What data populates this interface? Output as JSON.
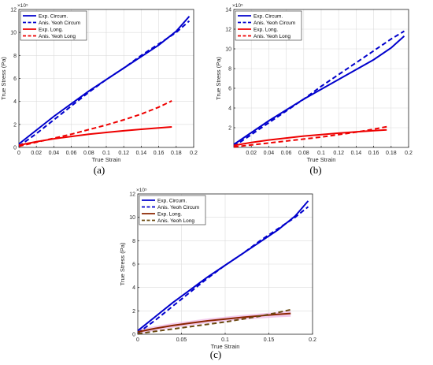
{
  "panel_labels": [
    "(a)",
    "(b)",
    "(c)"
  ],
  "chart_data": [
    {
      "type": "line",
      "panel": "(a)",
      "xlabel": "True Strain",
      "ylabel": "True Stress (Pa)",
      "y_multiplier_label": "×10⁵",
      "xlim": [
        0,
        0.2
      ],
      "ylim": [
        0,
        12
      ],
      "x_ticks": [
        "0",
        "0.02",
        "0.04",
        "0.06",
        "0.08",
        "0.1",
        "0.12",
        "0.14",
        "0.16",
        "0.18",
        "0.2"
      ],
      "y_ticks": [
        "0",
        "2",
        "4",
        "6",
        "8",
        "10",
        "12"
      ],
      "grid": true,
      "legend_position": "top-left",
      "series": [
        {
          "name": "Exp. Circum.",
          "color": "#0000cc",
          "style": "solid",
          "x": [
            0,
            0.02,
            0.04,
            0.06,
            0.08,
            0.1,
            0.12,
            0.14,
            0.16,
            0.18,
            0.195
          ],
          "y": [
            0.3,
            1.5,
            2.7,
            3.8,
            4.9,
            5.9,
            6.9,
            7.9,
            8.9,
            10.1,
            11.4
          ]
        },
        {
          "name": "Anis. Yeoh Circum",
          "color": "#0000cc",
          "style": "dashed",
          "x": [
            0,
            0.02,
            0.04,
            0.06,
            0.08,
            0.1,
            0.12,
            0.14,
            0.16,
            0.18,
            0.195
          ],
          "y": [
            0.1,
            1.2,
            2.4,
            3.6,
            4.8,
            5.9,
            6.9,
            8.0,
            9.0,
            10.0,
            11.0
          ]
        },
        {
          "name": "Exp. Long.",
          "color": "#ee0000",
          "style": "solid",
          "x": [
            0,
            0.02,
            0.04,
            0.06,
            0.08,
            0.1,
            0.12,
            0.14,
            0.16,
            0.175
          ],
          "y": [
            0.2,
            0.5,
            0.75,
            0.95,
            1.15,
            1.3,
            1.45,
            1.58,
            1.7,
            1.78
          ]
        },
        {
          "name": "Anis. Yeoh Long",
          "color": "#ee0000",
          "style": "dashed",
          "x": [
            0,
            0.02,
            0.04,
            0.06,
            0.08,
            0.1,
            0.12,
            0.14,
            0.16,
            0.175
          ],
          "y": [
            0.1,
            0.45,
            0.8,
            1.15,
            1.55,
            1.95,
            2.4,
            2.9,
            3.5,
            4.05
          ]
        }
      ]
    },
    {
      "type": "line",
      "panel": "(b)",
      "xlabel": "True Strain",
      "ylabel": "True Stress (Pa)",
      "y_multiplier_label": "×10⁵",
      "xlim": [
        0,
        0.2
      ],
      "ylim": [
        0,
        14
      ],
      "x_ticks": [
        "0.02",
        "0.04",
        "0.06",
        "0.08",
        "0.1",
        "0.12",
        "0.14",
        "0.16",
        "0.18",
        "0.2"
      ],
      "y_ticks": [
        "2",
        "4",
        "6",
        "8",
        "10",
        "12",
        "14"
      ],
      "grid": true,
      "legend_position": "top-left",
      "series": [
        {
          "name": "Exp. Circum.",
          "color": "#0000cc",
          "style": "solid",
          "x": [
            0,
            0.02,
            0.04,
            0.06,
            0.08,
            0.1,
            0.12,
            0.14,
            0.16,
            0.18,
            0.195
          ],
          "y": [
            0.3,
            1.5,
            2.7,
            3.8,
            4.9,
            5.9,
            6.9,
            7.9,
            8.9,
            10.1,
            11.3
          ]
        },
        {
          "name": "Anis. Yeoh Circum",
          "color": "#0000cc",
          "style": "dashed",
          "x": [
            0,
            0.02,
            0.04,
            0.06,
            0.08,
            0.1,
            0.12,
            0.14,
            0.16,
            0.18,
            0.195
          ],
          "y": [
            0.1,
            1.3,
            2.5,
            3.7,
            4.9,
            6.2,
            7.4,
            8.6,
            9.8,
            11.0,
            11.8
          ]
        },
        {
          "name": "Exp. Long.",
          "color": "#ee0000",
          "style": "solid",
          "x": [
            0,
            0.02,
            0.04,
            0.06,
            0.08,
            0.1,
            0.12,
            0.14,
            0.16,
            0.175
          ],
          "y": [
            0.2,
            0.5,
            0.75,
            0.95,
            1.15,
            1.3,
            1.45,
            1.58,
            1.7,
            1.78
          ]
        },
        {
          "name": "Anis. Yeoh Long",
          "color": "#ee0000",
          "style": "dashed",
          "x": [
            0,
            0.02,
            0.04,
            0.06,
            0.08,
            0.1,
            0.12,
            0.14,
            0.16,
            0.175
          ],
          "y": [
            0.05,
            0.25,
            0.45,
            0.65,
            0.85,
            1.05,
            1.3,
            1.55,
            1.85,
            2.1
          ]
        }
      ]
    },
    {
      "type": "line",
      "panel": "(c)",
      "xlabel": "True Strain",
      "ylabel": "True Stress (Pa)",
      "y_multiplier_label": "×10⁵",
      "xlim": [
        0,
        0.2
      ],
      "ylim": [
        0,
        12
      ],
      "x_ticks": [
        "0",
        "0.05",
        "0.1",
        "0.15",
        "0.2"
      ],
      "y_ticks": [
        "0",
        "2",
        "4",
        "6",
        "8",
        "10",
        "12"
      ],
      "grid": true,
      "legend_position": "top-left",
      "series": [
        {
          "name": "Exp. Circum.",
          "color": "#0000cc",
          "style": "solid",
          "x": [
            0,
            0.02,
            0.04,
            0.06,
            0.08,
            0.1,
            0.12,
            0.14,
            0.16,
            0.18,
            0.195
          ],
          "y": [
            0.3,
            1.5,
            2.7,
            3.8,
            4.9,
            5.9,
            6.9,
            7.9,
            8.9,
            10.1,
            11.4
          ]
        },
        {
          "name": "Anis. Yeoh Circum",
          "color": "#0000cc",
          "style": "dashed",
          "x": [
            0,
            0.02,
            0.04,
            0.06,
            0.08,
            0.1,
            0.12,
            0.14,
            0.16,
            0.18,
            0.195
          ],
          "y": [
            0.1,
            1.2,
            2.4,
            3.6,
            4.8,
            5.9,
            6.9,
            8.0,
            9.0,
            10.0,
            10.9
          ]
        },
        {
          "name": "Exp. Long.",
          "color": "#8b2500",
          "style": "solid",
          "x": [
            0,
            0.02,
            0.04,
            0.06,
            0.08,
            0.1,
            0.12,
            0.14,
            0.16,
            0.175
          ],
          "y": [
            0.2,
            0.5,
            0.75,
            0.95,
            1.15,
            1.3,
            1.45,
            1.58,
            1.7,
            1.78
          ]
        },
        {
          "name": "Anis. Yeoh Long",
          "color": "#6b4a10",
          "style": "dashed",
          "x": [
            0,
            0.02,
            0.04,
            0.06,
            0.08,
            0.1,
            0.12,
            0.14,
            0.16,
            0.175
          ],
          "y": [
            0.05,
            0.25,
            0.45,
            0.65,
            0.85,
            1.05,
            1.3,
            1.55,
            1.85,
            2.1
          ]
        }
      ],
      "band": {
        "color": "#e9a0dc",
        "x": [
          0,
          0.02,
          0.04,
          0.06,
          0.08,
          0.1,
          0.12,
          0.14,
          0.16,
          0.175
        ],
        "y_low": [
          0.0,
          0.3,
          0.55,
          0.75,
          0.95,
          1.1,
          1.25,
          1.35,
          1.45,
          1.5
        ],
        "y_high": [
          0.4,
          0.7,
          0.95,
          1.15,
          1.35,
          1.5,
          1.65,
          1.78,
          1.9,
          2.0
        ]
      }
    }
  ]
}
